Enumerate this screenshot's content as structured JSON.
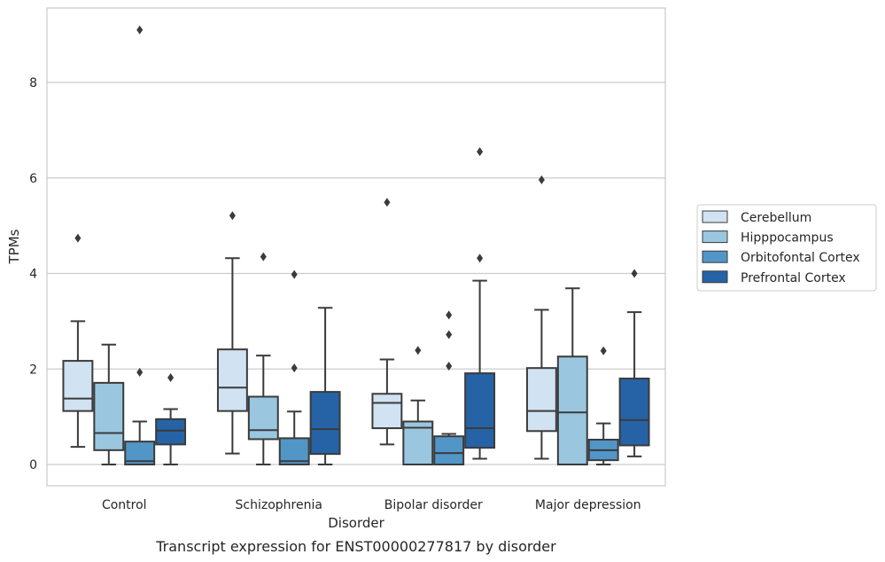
{
  "chart_data": {
    "type": "boxplot",
    "title": "Transcript expression for ENST00000277817 by disorder",
    "xlabel": "Disorder",
    "ylabel": "TPMs",
    "ylim": [
      -0.45,
      9.65
    ],
    "yticks": [
      0,
      2,
      4,
      6,
      8
    ],
    "grid": "horizontal",
    "legend_position": "right",
    "categories": [
      "Control",
      "Schizophrenia",
      "Bipolar disorder",
      "Major depression"
    ],
    "series": [
      {
        "name": "Cerebellum",
        "color": "#d1e2f2",
        "boxes": [
          {
            "whislo": 0.37,
            "q1": 1.12,
            "med": 1.38,
            "q3": 2.17,
            "whishi": 3.0,
            "fliers": [
              4.74
            ]
          },
          {
            "whislo": 0.23,
            "q1": 1.12,
            "med": 1.61,
            "q3": 2.41,
            "whishi": 4.32,
            "fliers": [
              5.21
            ]
          },
          {
            "whislo": 0.42,
            "q1": 0.76,
            "med": 1.29,
            "q3": 1.48,
            "whishi": 2.2,
            "fliers": [
              5.49
            ]
          },
          {
            "whislo": 0.12,
            "q1": 0.7,
            "med": 1.12,
            "q3": 2.02,
            "whishi": 3.24,
            "fliers": [
              5.96
            ]
          }
        ]
      },
      {
        "name": "Hipppocampus",
        "color": "#9ac7df",
        "boxes": [
          {
            "whislo": 0.0,
            "q1": 0.3,
            "med": 0.66,
            "q3": 1.71,
            "whishi": 2.51,
            "fliers": []
          },
          {
            "whislo": 0.0,
            "q1": 0.53,
            "med": 0.72,
            "q3": 1.42,
            "whishi": 2.28,
            "fliers": [
              4.35
            ]
          },
          {
            "whislo": 0.0,
            "q1": 0.0,
            "med": 0.77,
            "q3": 0.9,
            "whishi": 1.34,
            "fliers": [
              2.39
            ]
          },
          {
            "whislo": 0.0,
            "q1": 0.0,
            "med": 1.09,
            "q3": 2.26,
            "whishi": 3.69,
            "fliers": []
          }
        ]
      },
      {
        "name": "Orbitofontal Cortex",
        "color": "#5296c7",
        "boxes": [
          {
            "whislo": 0.0,
            "q1": 0.0,
            "med": 0.07,
            "q3": 0.48,
            "whishi": 0.9,
            "fliers": [
              1.93,
              9.1
            ]
          },
          {
            "whislo": 0.0,
            "q1": 0.0,
            "med": 0.07,
            "q3": 0.55,
            "whishi": 1.11,
            "fliers": [
              2.02,
              3.98
            ]
          },
          {
            "whislo": 0.0,
            "q1": 0.0,
            "med": 0.24,
            "q3": 0.59,
            "whishi": 0.64,
            "fliers": [
              2.06,
              2.72,
              3.13
            ]
          },
          {
            "whislo": 0.0,
            "q1": 0.09,
            "med": 0.3,
            "q3": 0.52,
            "whishi": 0.86,
            "fliers": [
              2.38
            ]
          }
        ]
      },
      {
        "name": "Prefrontal Cortex",
        "color": "#2563a6",
        "boxes": [
          {
            "whislo": 0.0,
            "q1": 0.42,
            "med": 0.71,
            "q3": 0.95,
            "whishi": 1.16,
            "fliers": [
              1.82
            ]
          },
          {
            "whislo": 0.0,
            "q1": 0.22,
            "med": 0.74,
            "q3": 1.52,
            "whishi": 3.28,
            "fliers": []
          },
          {
            "whislo": 0.12,
            "q1": 0.35,
            "med": 0.76,
            "q3": 1.91,
            "whishi": 3.85,
            "fliers": [
              4.32,
              6.55
            ]
          },
          {
            "whislo": 0.17,
            "q1": 0.4,
            "med": 0.93,
            "q3": 1.8,
            "whishi": 3.19,
            "fliers": [
              4.0
            ]
          }
        ]
      }
    ]
  }
}
